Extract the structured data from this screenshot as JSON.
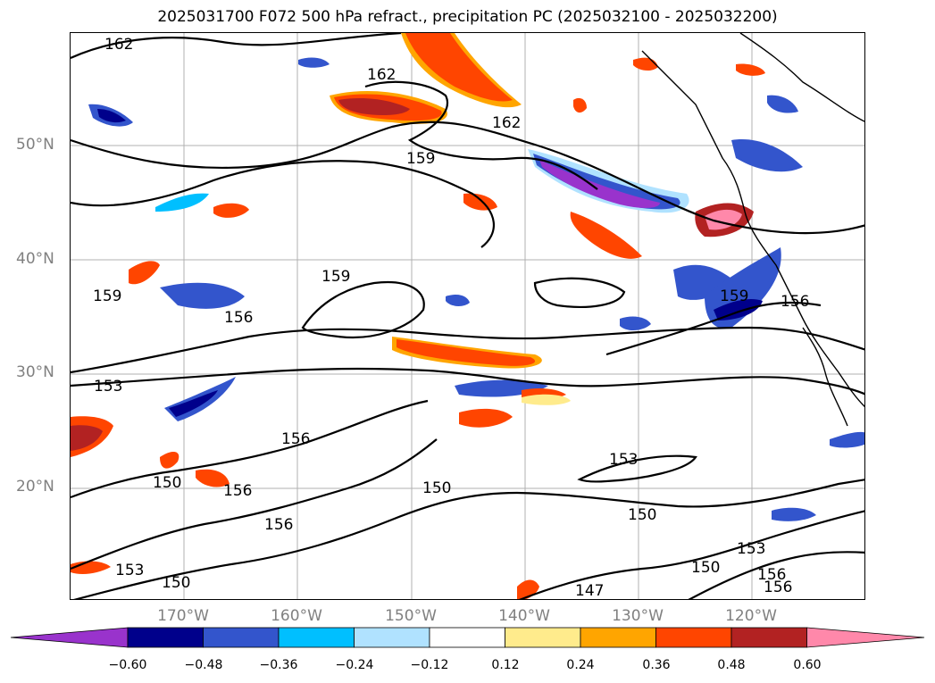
{
  "title": "2025031700 F072 500 hPa refract., precipitation PC (2025032100 - 2025032200)",
  "map": {
    "lat_labels": [
      "50°N",
      "40°N",
      "30°N",
      "20°N"
    ],
    "lon_labels": [
      "170°W",
      "160°W",
      "150°W",
      "140°W",
      "130°W",
      "120°W"
    ],
    "contour_labels": [
      "162",
      "162",
      "162",
      "159",
      "159",
      "159",
      "159",
      "156",
      "156",
      "156",
      "156",
      "156",
      "156",
      "156",
      "153",
      "153",
      "153",
      "153",
      "150",
      "150",
      "150",
      "150",
      "150",
      "147"
    ],
    "colors": {
      "land_outline": "#000000",
      "gridline": "#b0b0b0",
      "contour": "#000000"
    }
  },
  "colorbar": {
    "colors": [
      "#9933cc",
      "#00008b",
      "#3355cc",
      "#00bfff",
      "#b0e2ff",
      "#ffffff",
      "#ffeb8c",
      "#ffa500",
      "#ff4500",
      "#b22222",
      "#ff88aa"
    ],
    "tick_labels": [
      "−0.60",
      "−0.48",
      "−0.36",
      "−0.24",
      "−0.12",
      "0.12",
      "0.24",
      "0.36",
      "0.48",
      "0.60"
    ]
  }
}
